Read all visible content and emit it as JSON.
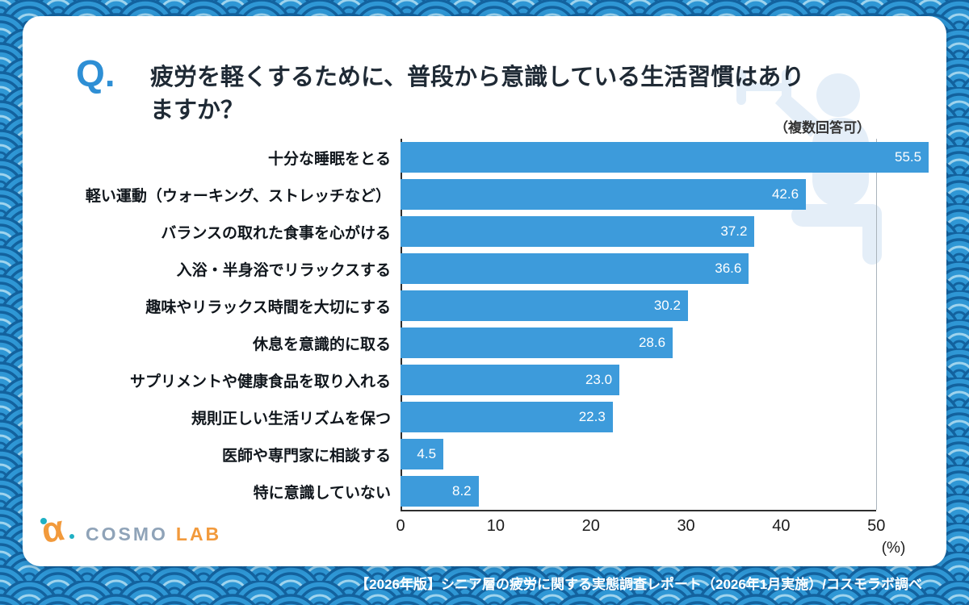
{
  "header": {
    "q_label": "Q.",
    "title_line1": "疲労を軽くするために、普段から意識している生活習慣はあり",
    "title_line2": "ますか？",
    "note": "（複数回答可）"
  },
  "logo": {
    "mark": "α",
    "cosmo": "COSMO",
    "lab": "LAB"
  },
  "footer": {
    "text": "【2026年版】シニア層の疲労に関する実態調査レポート（2026年1月実施）/コスモラボ調べ"
  },
  "colors": {
    "pattern_base": "#2f97d5",
    "pattern_line": "#13629e",
    "bar": "#3d9bdb",
    "q_accent": "#2e8fd5",
    "title_text": "#1f2a35",
    "footer_text": "#ffffff"
  },
  "chart_data": {
    "type": "bar",
    "orientation": "horizontal",
    "title": "疲労を軽くするために、普段から意識している生活習慣はありますか？",
    "subtitle": "（複数回答可）",
    "categories": [
      "十分な睡眠をとる",
      "軽い運動（ウォーキング、ストレッチなど）",
      "バランスの取れた食事を心がける",
      "入浴・半身浴でリラックスする",
      "趣味やリラックス時間を大切にする",
      "休息を意識的に取る",
      "サプリメントや健康食品を取り入れる",
      "規則正しい生活リズムを保つ",
      "医師や専門家に相談する",
      "特に意識していない"
    ],
    "values": [
      55.5,
      42.6,
      37.2,
      36.6,
      30.2,
      28.6,
      23.0,
      22.3,
      4.5,
      8.2
    ],
    "value_labels": [
      "55.5",
      "42.6",
      "37.2",
      "36.6",
      "30.2",
      "28.6",
      "23.0",
      "22.3",
      "4.5",
      "8.2"
    ],
    "x_ticks": [
      0,
      10,
      20,
      30,
      40,
      50
    ],
    "x_axis_max": 56,
    "gridline_at": 50,
    "unit_label": "(%)",
    "bar_color": "#3d9bdb",
    "xlim": [
      0,
      56
    ],
    "grid": "single vertical gridline at 50",
    "legend": "none"
  }
}
